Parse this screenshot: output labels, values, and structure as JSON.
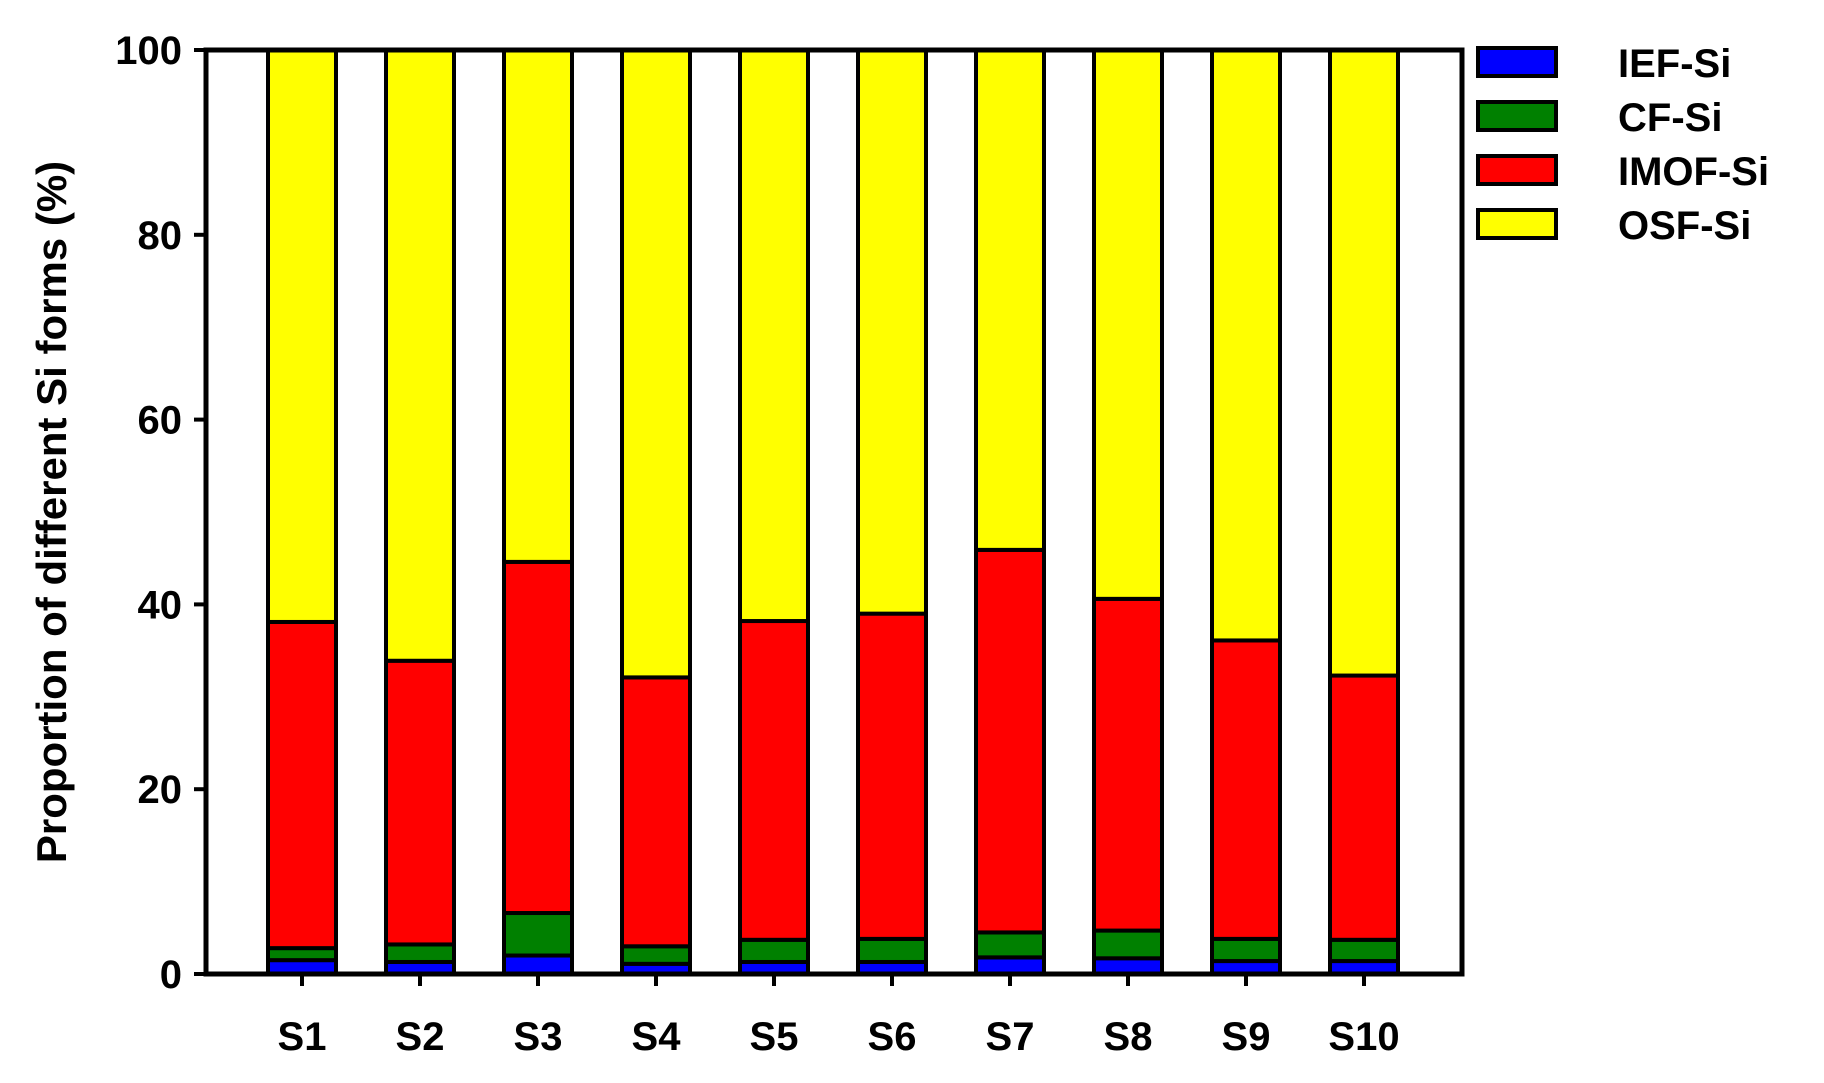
{
  "chart_data": {
    "type": "bar",
    "stacked": true,
    "categories": [
      "S1",
      "S2",
      "S3",
      "S4",
      "S5",
      "S6",
      "S7",
      "S8",
      "S9",
      "S10"
    ],
    "series": [
      {
        "name": "IEF-Si",
        "color": "#0000ff",
        "values": [
          1.5,
          1.3,
          2.0,
          1.1,
          1.3,
          1.3,
          1.8,
          1.7,
          1.4,
          1.4
        ]
      },
      {
        "name": "CF-Si",
        "color": "#008000",
        "values": [
          1.3,
          1.9,
          4.6,
          1.9,
          2.4,
          2.5,
          2.7,
          3.0,
          2.4,
          2.3
        ]
      },
      {
        "name": "IMOF-Si",
        "color": "#ff0000",
        "values": [
          35.3,
          30.7,
          38.0,
          29.1,
          34.5,
          35.2,
          41.4,
          35.9,
          32.3,
          28.6
        ]
      },
      {
        "name": "OSF-Si",
        "color": "#ffff00",
        "values": [
          61.9,
          66.1,
          55.4,
          67.9,
          61.8,
          61.0,
          54.1,
          59.4,
          63.9,
          67.7
        ]
      }
    ],
    "title": "",
    "xlabel": "",
    "ylabel": "Proportion of different Si forms (%)",
    "ylim": [
      0,
      100
    ],
    "yticks": [
      "0",
      "20",
      "40",
      "60",
      "80",
      "100"
    ],
    "grid": false,
    "legend_position": "top-right, outside plot"
  }
}
